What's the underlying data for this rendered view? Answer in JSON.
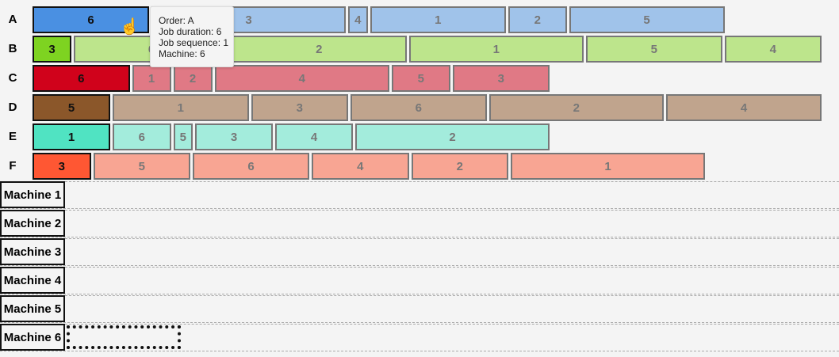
{
  "orders": [
    {
      "label": "A",
      "color": "#4a90e2",
      "light": "#a0c3ea",
      "jobs": [
        {
          "machine": "6",
          "duration": 6
        },
        {
          "machine": "3",
          "duration": 10
        },
        {
          "machine": "4",
          "duration": 1
        },
        {
          "machine": "1",
          "duration": 7
        },
        {
          "machine": "2",
          "duration": 3
        },
        {
          "machine": "5",
          "duration": 8
        }
      ]
    },
    {
      "label": "B",
      "color": "#7ed321",
      "light": "#bde58c",
      "jobs": [
        {
          "machine": "3",
          "duration": 2
        },
        {
          "machine": "6",
          "duration": 8
        },
        {
          "machine": "2",
          "duration": 9
        },
        {
          "machine": "1",
          "duration": 9
        },
        {
          "machine": "5",
          "duration": 7
        },
        {
          "machine": "4",
          "duration": 5
        }
      ]
    },
    {
      "label": "C",
      "color": "#d0021b",
      "light": "#e07985",
      "jobs": [
        {
          "machine": "6",
          "duration": 5
        },
        {
          "machine": "1",
          "duration": 2
        },
        {
          "machine": "2",
          "duration": 2
        },
        {
          "machine": "4",
          "duration": 9
        },
        {
          "machine": "5",
          "duration": 3
        },
        {
          "machine": "3",
          "duration": 5
        }
      ]
    },
    {
      "label": "D",
      "color": "#8b572a",
      "light": "#c0a48d",
      "jobs": [
        {
          "machine": "5",
          "duration": 4
        },
        {
          "machine": "1",
          "duration": 7
        },
        {
          "machine": "3",
          "duration": 5
        },
        {
          "machine": "6",
          "duration": 7
        },
        {
          "machine": "2",
          "duration": 9
        },
        {
          "machine": "4",
          "duration": 8
        }
      ]
    },
    {
      "label": "E",
      "color": "#50e3c2",
      "light": "#a3ecdc",
      "jobs": [
        {
          "machine": "1",
          "duration": 4
        },
        {
          "machine": "6",
          "duration": 3
        },
        {
          "machine": "5",
          "duration": 1
        },
        {
          "machine": "3",
          "duration": 4
        },
        {
          "machine": "4",
          "duration": 4
        },
        {
          "machine": "2",
          "duration": 10
        }
      ]
    },
    {
      "label": "F",
      "color": "#ff5733",
      "light": "#f8a593",
      "jobs": [
        {
          "machine": "3",
          "duration": 3
        },
        {
          "machine": "5",
          "duration": 5
        },
        {
          "machine": "6",
          "duration": 6
        },
        {
          "machine": "4",
          "duration": 5
        },
        {
          "machine": "2",
          "duration": 5
        },
        {
          "machine": "1",
          "duration": 10
        }
      ]
    }
  ],
  "machines": [
    "Machine 1",
    "Machine 2",
    "Machine 3",
    "Machine 4",
    "Machine 5",
    "Machine 6"
  ],
  "tooltip": {
    "order": "Order: A",
    "duration": "Job duration: 6",
    "sequence": "Job sequence: 1",
    "machine": "Machine: 6"
  }
}
